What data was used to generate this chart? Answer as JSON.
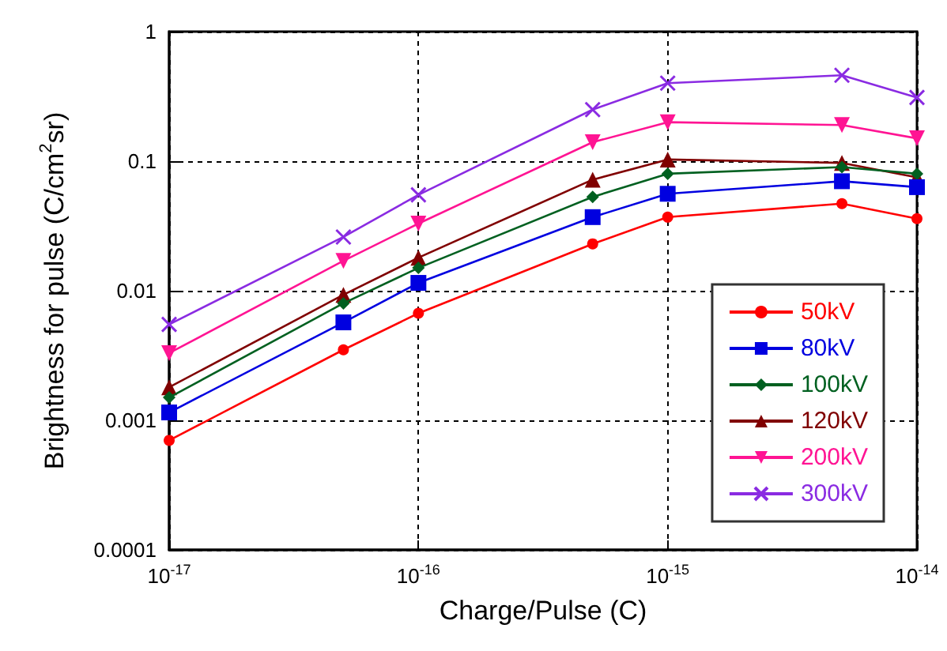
{
  "chart_data": {
    "type": "line",
    "xlabel": "Charge/Pulse (C)",
    "ylabel": "Brightness for pulse (C/cm$^{2}$sr)",
    "x": [
      1e-17,
      5e-17,
      1e-16,
      5e-16,
      1e-15,
      5e-15,
      1e-14
    ],
    "log": "xy",
    "grid": true,
    "legend": "bottom right",
    "line_style": "solid",
    "xlim": [
      1e-17,
      1e-14
    ],
    "xticks": [
      {
        "value": 1e-17,
        "label": "10$^{-17}$"
      },
      {
        "value": 1e-16,
        "label": "10$^{-16}$"
      },
      {
        "value": 1e-15,
        "label": "10$^{-15}$"
      },
      {
        "value": 1e-14,
        "label": "10$^{-14}$"
      }
    ],
    "ylim": [
      0.0001,
      1
    ],
    "yticks": [
      0.0001,
      0.001,
      0.01,
      0.1,
      1
    ],
    "series": [
      {
        "name": "50kV",
        "color": "#ff0000",
        "marker": "circle",
        "values": [
          0.0007,
          0.0035,
          0.0067,
          0.023,
          0.037,
          0.047,
          0.036
        ]
      },
      {
        "name": "80kV",
        "color": "#0000e0",
        "marker": "square",
        "values": [
          0.00115,
          0.0057,
          0.0115,
          0.037,
          0.056,
          0.07,
          0.063
        ]
      },
      {
        "name": "100kV",
        "color": "#006020",
        "marker": "diamond",
        "values": [
          0.0015,
          0.008,
          0.015,
          0.053,
          0.08,
          0.09,
          0.08
        ]
      },
      {
        "name": "120kV",
        "color": "#800000",
        "marker": "triangle",
        "values": [
          0.0018,
          0.0093,
          0.018,
          0.072,
          0.103,
          0.097,
          0.075
        ]
      },
      {
        "name": "200kV",
        "color": "#ff1493",
        "marker": "triangle-down",
        "values": [
          0.0033,
          0.017,
          0.033,
          0.14,
          0.2,
          0.19,
          0.15
        ]
      },
      {
        "name": "300kV",
        "color": "#8a2be2",
        "marker": "cross",
        "values": [
          0.0055,
          0.026,
          0.055,
          0.25,
          0.4,
          0.46,
          0.31
        ]
      }
    ]
  }
}
